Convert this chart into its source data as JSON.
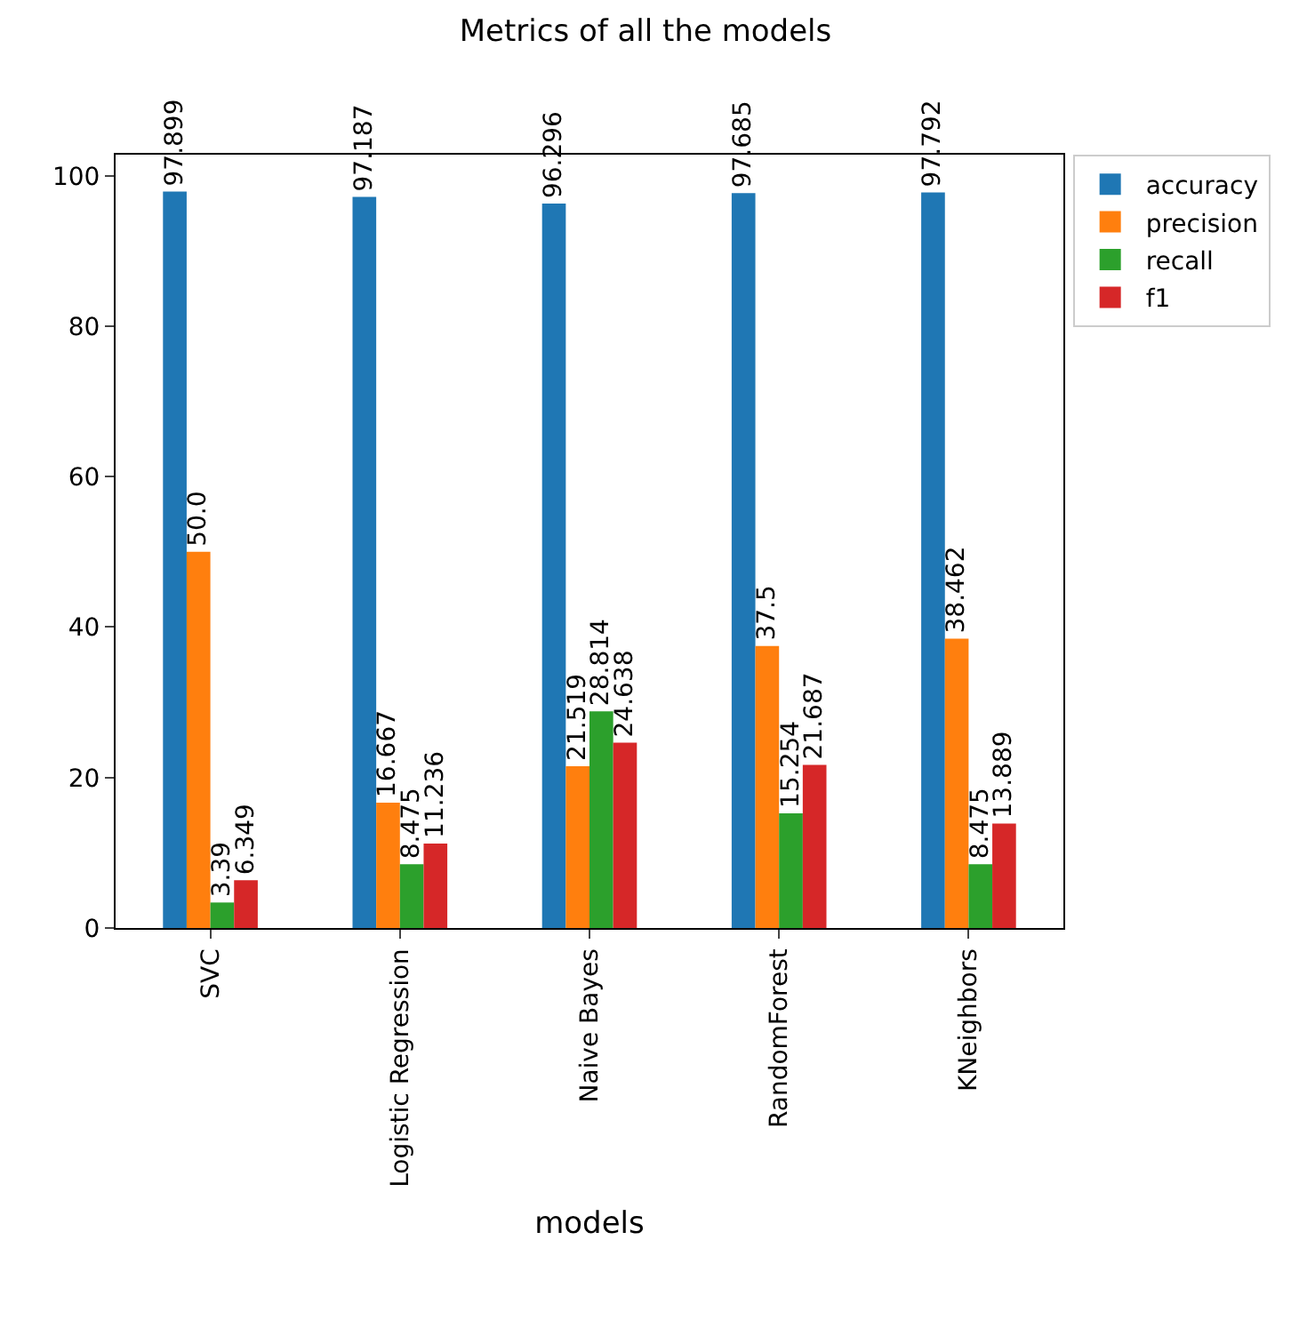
{
  "chart_data": {
    "type": "bar",
    "title": "Metrics of all the models",
    "xlabel": "models",
    "categories": [
      "SVC",
      "Logistic Regression",
      "Naive Bayes",
      "RandomForest",
      "KNeighbors"
    ],
    "series": [
      {
        "name": "accuracy",
        "color": "#1f77b4",
        "values": [
          97.899,
          97.187,
          96.296,
          97.685,
          97.792
        ],
        "value_labels": [
          "97.899",
          "97.187",
          "96.296",
          "97.685",
          "97.792"
        ]
      },
      {
        "name": "precision",
        "color": "#ff7f0e",
        "values": [
          50.0,
          16.667,
          21.519,
          37.5,
          38.462
        ],
        "value_labels": [
          "50.0",
          "16.667",
          "21.519",
          "37.5",
          "38.462"
        ]
      },
      {
        "name": "recall",
        "color": "#2ca02c",
        "values": [
          3.39,
          8.475,
          28.814,
          15.254,
          8.475
        ],
        "value_labels": [
          "3.39",
          "8.475",
          "28.814",
          "15.254",
          "8.475"
        ]
      },
      {
        "name": "f1",
        "color": "#d62728",
        "values": [
          6.349,
          11.236,
          24.638,
          21.687,
          13.889
        ],
        "value_labels": [
          "6.349",
          "11.236",
          "24.638",
          "21.687",
          "13.889"
        ]
      }
    ],
    "ylim": [
      0,
      102.8
    ],
    "yticks": [
      0,
      20,
      40,
      60,
      80,
      100
    ],
    "grid": false,
    "legend": "right"
  }
}
